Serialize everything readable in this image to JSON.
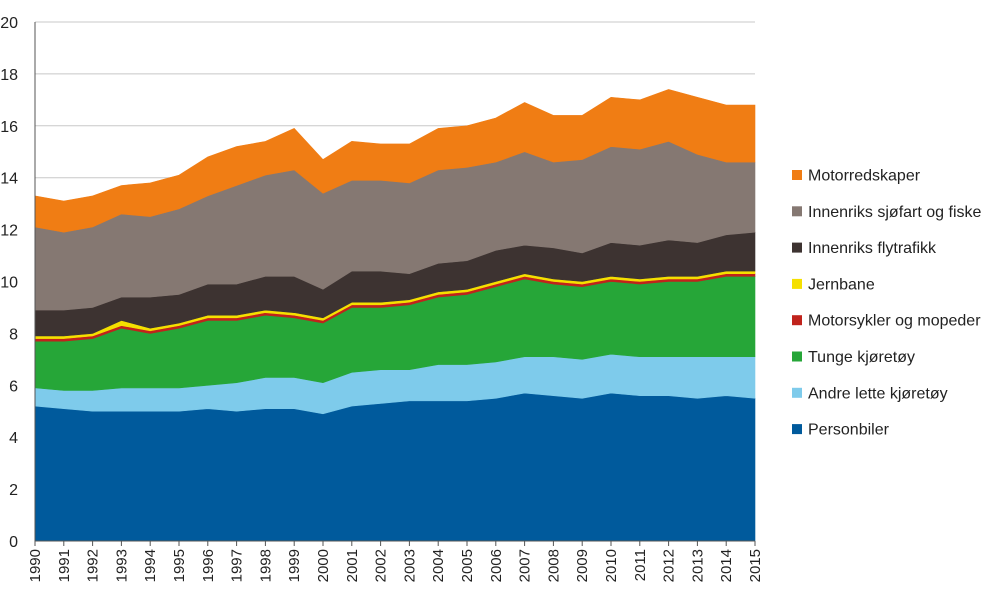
{
  "chart_data": {
    "type": "area",
    "stacked": true,
    "title": "",
    "xlabel": "",
    "ylabel": "",
    "ylim": [
      0,
      20
    ],
    "yticks": [
      0,
      2,
      4,
      6,
      8,
      10,
      12,
      14,
      16,
      18,
      20
    ],
    "grid": "horizontal",
    "legend_position": "right",
    "x": [
      "1990",
      "1991",
      "1992",
      "1993",
      "1994",
      "1995",
      "1996",
      "1997",
      "1998",
      "1999",
      "2000",
      "2001",
      "2002",
      "2003",
      "2004",
      "2005",
      "2006",
      "2007",
      "2008",
      "2009",
      "2010",
      "2011",
      "2012",
      "2013",
      "2014",
      "2015"
    ],
    "series": [
      {
        "name": "Personbiler",
        "color": "#005a9c",
        "values": [
          5.2,
          5.1,
          5.0,
          5.0,
          5.0,
          5.0,
          5.1,
          5.0,
          5.1,
          5.1,
          4.9,
          5.2,
          5.3,
          5.4,
          5.4,
          5.4,
          5.5,
          5.7,
          5.6,
          5.5,
          5.7,
          5.6,
          5.6,
          5.5,
          5.6,
          5.5
        ]
      },
      {
        "name": "Andre lette kjøretøy",
        "color": "#7ecbeb",
        "values": [
          0.7,
          0.7,
          0.8,
          0.9,
          0.9,
          0.9,
          0.9,
          1.1,
          1.2,
          1.2,
          1.2,
          1.3,
          1.3,
          1.2,
          1.4,
          1.4,
          1.4,
          1.4,
          1.5,
          1.5,
          1.5,
          1.5,
          1.5,
          1.6,
          1.5,
          1.6
        ]
      },
      {
        "name": "Tunge kjøretøy",
        "color": "#26a638",
        "values": [
          1.8,
          1.9,
          2.0,
          2.3,
          2.1,
          2.3,
          2.5,
          2.4,
          2.4,
          2.3,
          2.3,
          2.5,
          2.4,
          2.5,
          2.6,
          2.7,
          2.9,
          3.0,
          2.8,
          2.8,
          2.8,
          2.8,
          2.9,
          2.9,
          3.1,
          3.1
        ]
      },
      {
        "name": "Motorsykler og mopeder",
        "color": "#c0231c",
        "values": [
          0.1,
          0.1,
          0.1,
          0.1,
          0.1,
          0.1,
          0.1,
          0.1,
          0.1,
          0.1,
          0.1,
          0.1,
          0.1,
          0.1,
          0.1,
          0.1,
          0.1,
          0.1,
          0.1,
          0.1,
          0.1,
          0.1,
          0.1,
          0.1,
          0.1,
          0.1
        ]
      },
      {
        "name": "Jernbane",
        "color": "#f5e000",
        "values": [
          0.1,
          0.1,
          0.1,
          0.2,
          0.1,
          0.1,
          0.1,
          0.1,
          0.1,
          0.1,
          0.1,
          0.1,
          0.1,
          0.1,
          0.1,
          0.1,
          0.1,
          0.1,
          0.1,
          0.1,
          0.1,
          0.1,
          0.1,
          0.1,
          0.1,
          0.1
        ]
      },
      {
        "name": "Innenriks flytrafikk",
        "color": "#3d3331",
        "values": [
          1.0,
          1.0,
          1.0,
          0.9,
          1.2,
          1.1,
          1.2,
          1.2,
          1.3,
          1.4,
          1.1,
          1.2,
          1.2,
          1.0,
          1.1,
          1.1,
          1.2,
          1.1,
          1.2,
          1.1,
          1.3,
          1.3,
          1.4,
          1.3,
          1.4,
          1.5
        ]
      },
      {
        "name": "Innenriks sjøfart og fiske",
        "color": "#857872",
        "values": [
          3.2,
          3.0,
          3.1,
          3.2,
          3.1,
          3.3,
          3.4,
          3.8,
          3.9,
          4.1,
          3.7,
          3.5,
          3.5,
          3.5,
          3.6,
          3.6,
          3.4,
          3.6,
          3.3,
          3.6,
          3.7,
          3.7,
          3.8,
          3.4,
          2.8,
          2.7
        ]
      },
      {
        "name": "Motorredskaper",
        "color": "#f07d14",
        "values": [
          1.2,
          1.2,
          1.2,
          1.1,
          1.3,
          1.3,
          1.5,
          1.5,
          1.3,
          1.6,
          1.3,
          1.5,
          1.4,
          1.5,
          1.6,
          1.6,
          1.7,
          1.9,
          1.8,
          1.7,
          1.9,
          1.9,
          2.0,
          2.2,
          2.2,
          2.2
        ]
      }
    ],
    "legend_order": [
      "Motorredskaper",
      "Innenriks sjøfart og fiske",
      "Innenriks flytrafikk",
      "Jernbane",
      "Motorsykler og mopeder",
      "Tunge kjøretøy",
      "Andre lette kjøretøy",
      "Personbiler"
    ]
  }
}
